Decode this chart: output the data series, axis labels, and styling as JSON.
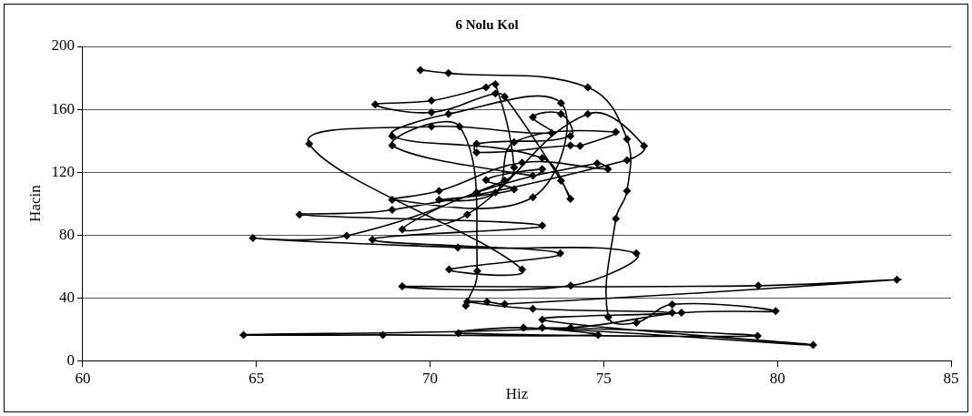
{
  "chart_data": {
    "type": "line",
    "title": "6 Nolu Kol",
    "xlabel": "Hiz",
    "ylabel": "Hacin",
    "xlim": [
      60,
      85
    ],
    "xticks": [
      60,
      65,
      70,
      75,
      80,
      85
    ],
    "ylim": [
      0,
      200
    ],
    "yticks": [
      0,
      40,
      80,
      120,
      160,
      200
    ],
    "grid": "y",
    "marker": "diamond",
    "line_style": "solid",
    "series": [
      {
        "color": "#000000",
        "x": [
          69.72,
          70.53,
          74.54,
          75.67,
          75.67,
          75.35,
          75.13,
          75.94,
          76.97,
          79.95,
          77.24,
          74.05,
          64.63,
          68.64,
          74.84,
          73.23,
          79.43,
          70.82,
          72.69,
          81.03,
          73.23,
          76.97,
          72.96,
          71.07,
          71.64,
          72.15,
          83.44,
          79.45,
          69.2,
          74.05,
          75.94,
          70.8,
          64.9,
          67.6,
          72.15,
          72.42,
          71.88,
          71.61,
          70.04,
          68.42,
          70.04,
          71.88,
          72.15,
          73.77,
          74.04,
          73.23,
          68.91,
          70.53,
          73.77,
          72.96,
          68.91,
          70.26,
          72.65,
          75.12,
          74.81,
          71.34,
          69.2,
          71.07,
          74.54,
          76.16,
          75.67,
          68.91,
          66.24,
          73.23,
          68.34,
          73.75,
          70.55,
          72.65,
          66.52,
          70.04,
          73.5,
          72.96,
          73.77,
          74.04,
          71.34,
          71.34,
          74.04,
          74.32,
          75.35,
          72.42,
          71.88,
          70.26,
          72.42,
          71.61,
          73.23,
          72.96,
          68.91,
          70.85,
          71.36,
          71.03
        ],
        "values": [
          185,
          183,
          174,
          141,
          108,
          90.4,
          27.8,
          24.2,
          35.8,
          31.5,
          30.5,
          21,
          16.4,
          16.4,
          16.4,
          21,
          15.8,
          17.5,
          21,
          9.9,
          26,
          30.5,
          33,
          37.5,
          37.5,
          36,
          51.5,
          47.7,
          47.3,
          47.7,
          68.3,
          72,
          78,
          79.5,
          114.6,
          123,
          176,
          174,
          165.5,
          163,
          158,
          170,
          168,
          114.6,
          103,
          129,
          143,
          157,
          164,
          104,
          102.4,
          108,
          126,
          122,
          125.6,
          107,
          83.5,
          93,
          157,
          136.7,
          127.6,
          96,
          93,
          86,
          77,
          68.3,
          58,
          58,
          138,
          149,
          145,
          155,
          157,
          143,
          138,
          132.5,
          137,
          136.7,
          145.5,
          139,
          107,
          102.4,
          109,
          115,
          122,
          117.7,
          137,
          149,
          57,
          35
        ]
      }
    ]
  }
}
